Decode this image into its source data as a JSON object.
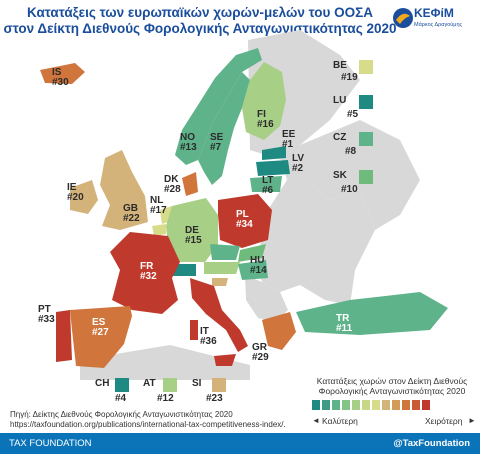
{
  "title_line1": "Κατατάξεις των ευρωπαϊκών χωρών-μελών του ΟΟΣΑ",
  "title_line2": "στον Δείκτη Διεθνούς Φορολογικής Ανταγωνιστικότητας 2020",
  "logo": {
    "name": "ΚΕΦίΜ",
    "subtitle": "Μάρκος Δραγούμης"
  },
  "colors": {
    "best": "#1f8a82",
    "good": "#5fb38a",
    "midgood": "#a8cf86",
    "mid": "#d7dc8a",
    "midbad": "#d4b37a",
    "bad": "#d0753c",
    "worst": "#bf3a2c",
    "nonoecd": "#d8d8d8",
    "footer": "#0b74b8"
  },
  "countries": [
    {
      "code": "IS",
      "rank": "#30"
    },
    {
      "code": "NO",
      "rank": "#13"
    },
    {
      "code": "SE",
      "rank": "#7"
    },
    {
      "code": "FI",
      "rank": "#16"
    },
    {
      "code": "EE",
      "rank": "#1"
    },
    {
      "code": "LV",
      "rank": "#2"
    },
    {
      "code": "LT",
      "rank": "#6"
    },
    {
      "code": "DK",
      "rank": "#28"
    },
    {
      "code": "IE",
      "rank": "#20"
    },
    {
      "code": "GB",
      "rank": "#22"
    },
    {
      "code": "NL",
      "rank": "#17"
    },
    {
      "code": "DE",
      "rank": "#15"
    },
    {
      "code": "PL",
      "rank": "#34"
    },
    {
      "code": "FR",
      "rank": "#32"
    },
    {
      "code": "HU",
      "rank": "#14"
    },
    {
      "code": "PT",
      "rank": "#33"
    },
    {
      "code": "ES",
      "rank": "#27"
    },
    {
      "code": "IT",
      "rank": "#36"
    },
    {
      "code": "GR",
      "rank": "#29"
    },
    {
      "code": "TR",
      "rank": "#11"
    }
  ],
  "side_legend": [
    {
      "code": "BE",
      "rank": "#19",
      "color": "#d7dc8a"
    },
    {
      "code": "LU",
      "rank": "#5",
      "color": "#1f8a82"
    },
    {
      "code": "CZ",
      "rank": "#8",
      "color": "#5fb38a"
    },
    {
      "code": "SK",
      "rank": "#10",
      "color": "#6fbb7c"
    }
  ],
  "bottom_legend": [
    {
      "code": "CH",
      "rank": "#4",
      "color": "#1f8a82"
    },
    {
      "code": "AT",
      "rank": "#12",
      "color": "#a8cf86"
    },
    {
      "code": "SI",
      "rank": "#23",
      "color": "#d4b37a"
    }
  ],
  "scale_title": "Κατατάξεις χωρών στον Δείκτη Διεθνούς Φορολογικής Ανταγωνιστικότητας 2020",
  "scale_colors": [
    "#1f8a82",
    "#3e9b86",
    "#5fb38a",
    "#84c489",
    "#a8cf86",
    "#c6d786",
    "#d7dc8a",
    "#d4b37a",
    "#d49a5a",
    "#d0753c",
    "#c95a33",
    "#bf3a2c"
  ],
  "scale_better": "Καλύτερη",
  "scale_worse": "Χειρότερη",
  "source_line1": "Πηγή: Δείκτης Διεθνούς Φορολογικής Ανταγωνιστικότητας 2020",
  "source_line2": "https://taxfoundation.org/publications/international-tax-competitiveness-index/.",
  "footer_left": "TAX FOUNDATION",
  "footer_right": "@TaxFoundation"
}
